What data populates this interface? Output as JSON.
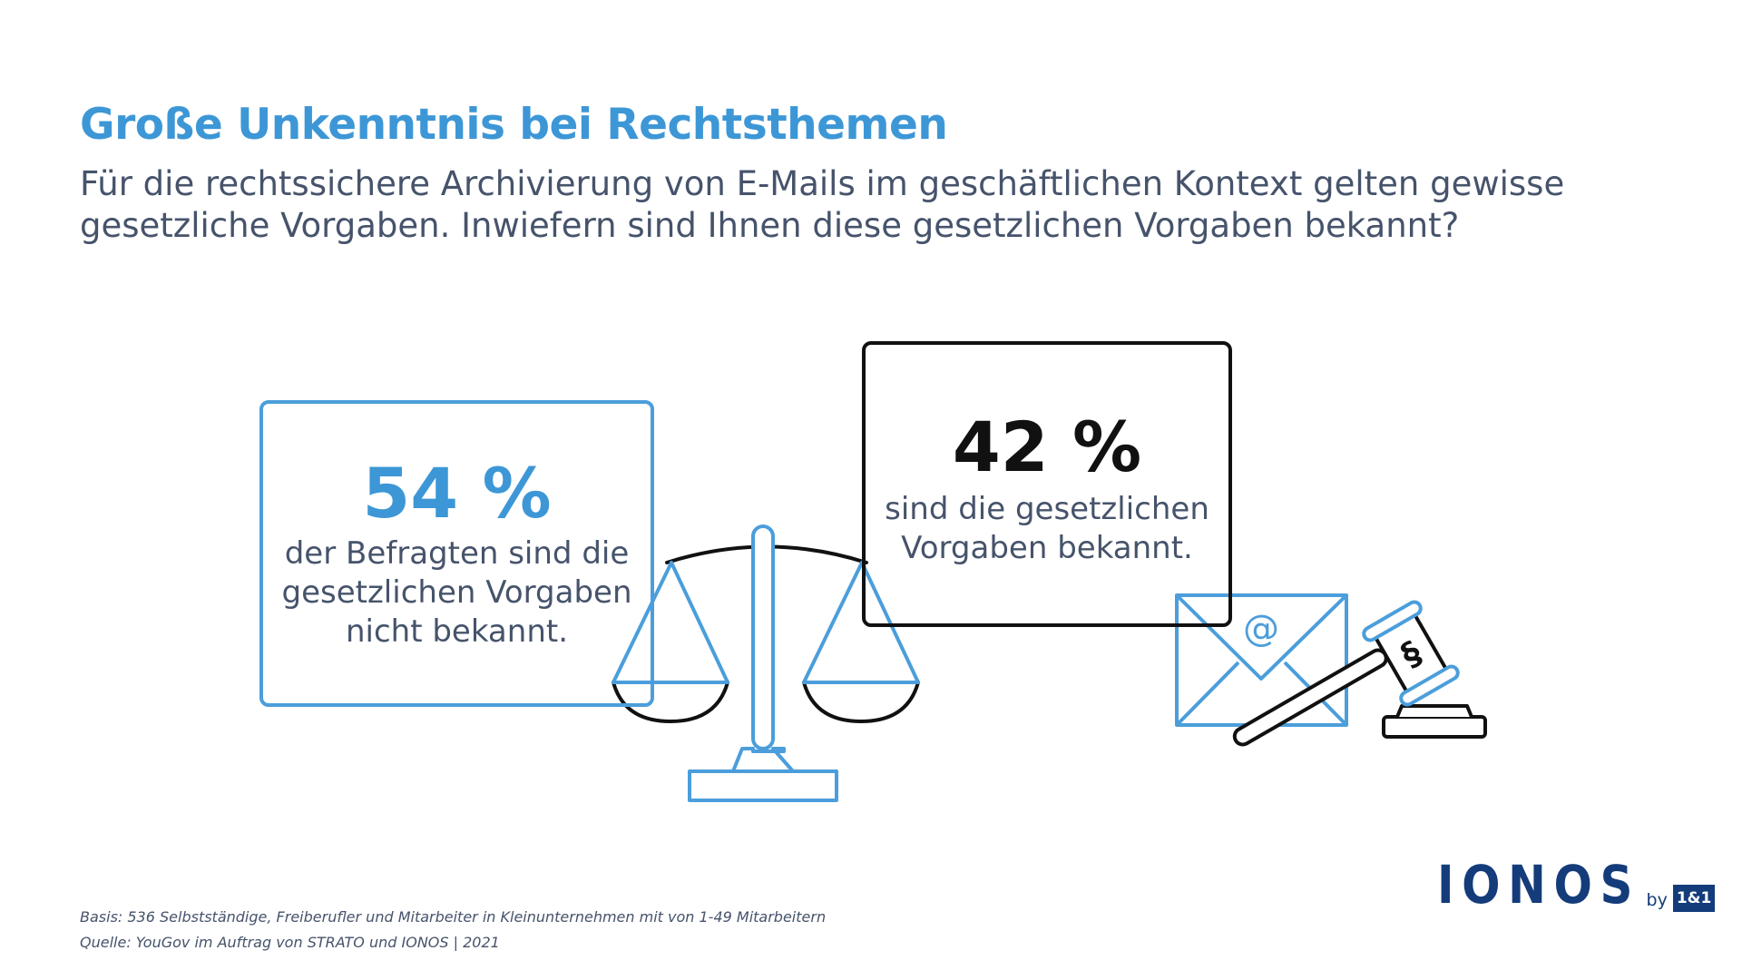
{
  "header": {
    "title": "Große Unkenntnis bei Rechtsthemen",
    "subtitle": "Für die rechtssichere Archivierung von E-Mails im geschäftlichen Kontext gelten gewisse gesetzliche Vorgaben. Inwiefern sind Ihnen diese gesetzlichen Vorgaben bekannt?"
  },
  "stats": {
    "left": {
      "value": "54 %",
      "text": "der Befragten sind die gesetzlichen Vorgaben nicht bekannt."
    },
    "right": {
      "value": "42 %",
      "text": "sind die gesetzlichen Vorgaben bekannt."
    }
  },
  "icons": {
    "scale": "scale-icon",
    "envelope": "envelope-icon",
    "at_sign": "@",
    "gavel": "gavel-icon",
    "paragraph": "§"
  },
  "footer": {
    "basis": "Basis: 536 Selbstständige, Freiberufler und Mitarbeiter in Kleinunternehmen mit von 1-49 Mitarbeitern",
    "source": "Quelle: YouGov im Auftrag von STRATO und IONOS | 2021"
  },
  "logo": {
    "main": "IONOS",
    "by": "by",
    "brand": "1&1"
  },
  "colors": {
    "accent": "#3d97d6",
    "dark": "#111111",
    "text": "#46536b",
    "logo": "#143c7a"
  }
}
